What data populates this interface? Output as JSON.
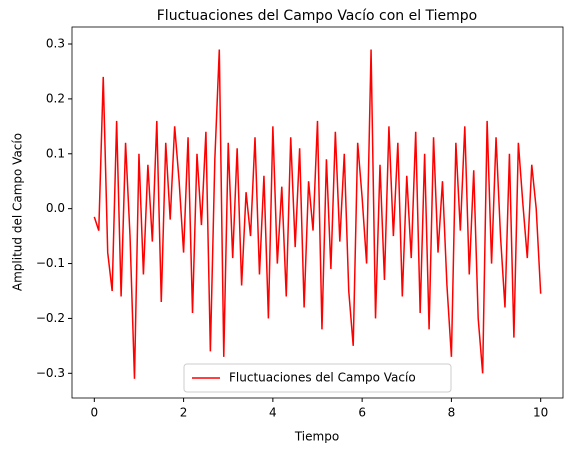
{
  "chart_data": {
    "type": "line",
    "title": "Fluctuaciones del Campo Vacío con el Tiempo",
    "xlabel": "Tiempo",
    "ylabel": "Amplitud del Campo Vacío",
    "x": [
      0,
      0.1,
      0.2,
      0.3,
      0.4,
      0.5,
      0.6,
      0.7,
      0.8,
      0.9,
      1,
      1.1,
      1.2,
      1.3,
      1.4,
      1.5,
      1.6,
      1.7,
      1.8,
      1.9,
      2,
      2.1,
      2.2,
      2.3,
      2.4,
      2.5,
      2.6,
      2.7,
      2.8,
      2.9,
      3,
      3.1,
      3.2,
      3.3,
      3.4,
      3.5,
      3.6,
      3.7,
      3.8,
      3.9,
      4,
      4.1,
      4.2,
      4.3,
      4.4,
      4.5,
      4.6,
      4.7,
      4.8,
      4.9,
      5,
      5.1,
      5.2,
      5.3,
      5.4,
      5.5,
      5.6,
      5.7,
      5.8,
      5.9,
      6,
      6.1,
      6.2,
      6.3,
      6.4,
      6.5,
      6.6,
      6.7,
      6.8,
      6.9,
      7,
      7.1,
      7.2,
      7.3,
      7.4,
      7.5,
      7.6,
      7.7,
      7.8,
      7.9,
      8,
      8.1,
      8.2,
      8.3,
      8.4,
      8.5,
      8.6,
      8.7,
      8.8,
      8.9,
      9,
      9.1,
      9.2,
      9.3,
      9.4,
      9.5,
      9.6,
      9.7,
      9.8,
      9.9,
      10
    ],
    "series": [
      {
        "name": "Fluctuaciones del Campo Vacío",
        "color": "#ff0000",
        "values": [
          -0.015,
          -0.04,
          0.24,
          -0.08,
          -0.15,
          0.16,
          -0.16,
          0.12,
          -0.05,
          -0.31,
          0.1,
          -0.12,
          0.08,
          -0.06,
          0.16,
          -0.17,
          0.12,
          -0.02,
          0.15,
          0.05,
          -0.08,
          0.13,
          -0.19,
          0.1,
          -0.03,
          0.14,
          -0.26,
          0.09,
          0.29,
          -0.27,
          0.12,
          -0.09,
          0.11,
          -0.14,
          0.03,
          -0.05,
          0.13,
          -0.12,
          0.06,
          -0.2,
          0.15,
          -0.1,
          0.04,
          -0.16,
          0.13,
          -0.07,
          0.11,
          -0.18,
          0.05,
          -0.04,
          0.16,
          -0.22,
          0.09,
          -0.11,
          0.14,
          -0.06,
          0.1,
          -0.15,
          -0.25,
          0.12,
          0.02,
          -0.1,
          0.29,
          -0.2,
          0.08,
          -0.13,
          0.15,
          -0.05,
          0.12,
          -0.16,
          0.06,
          -0.09,
          0.14,
          -0.19,
          0.1,
          -0.22,
          0.13,
          -0.08,
          0.05,
          -0.14,
          -0.27,
          0.12,
          -0.04,
          0.15,
          -0.12,
          0.07,
          -0.2,
          -0.3,
          0.16,
          -0.1,
          0.13,
          -0.05,
          -0.18,
          0.1,
          -0.235,
          0.12,
          0.01,
          -0.09,
          0.08,
          0.0,
          -0.155
        ]
      }
    ],
    "xlim": [
      -0.5,
      10.5
    ],
    "xticks": [
      0,
      2,
      4,
      6,
      8,
      10
    ],
    "ylim": [
      -0.345,
      0.331
    ],
    "yticks": [
      {
        "value": -0.3,
        "label": "−0.3"
      },
      {
        "value": -0.2,
        "label": "−0.2"
      },
      {
        "value": -0.1,
        "label": "−0.1"
      },
      {
        "value": 0,
        "label": "0.0"
      },
      {
        "value": 0.1,
        "label": "0.1"
      },
      {
        "value": 0.2,
        "label": "0.2"
      },
      {
        "value": 0.3,
        "label": "0.3"
      }
    ],
    "legend": "lower center"
  }
}
